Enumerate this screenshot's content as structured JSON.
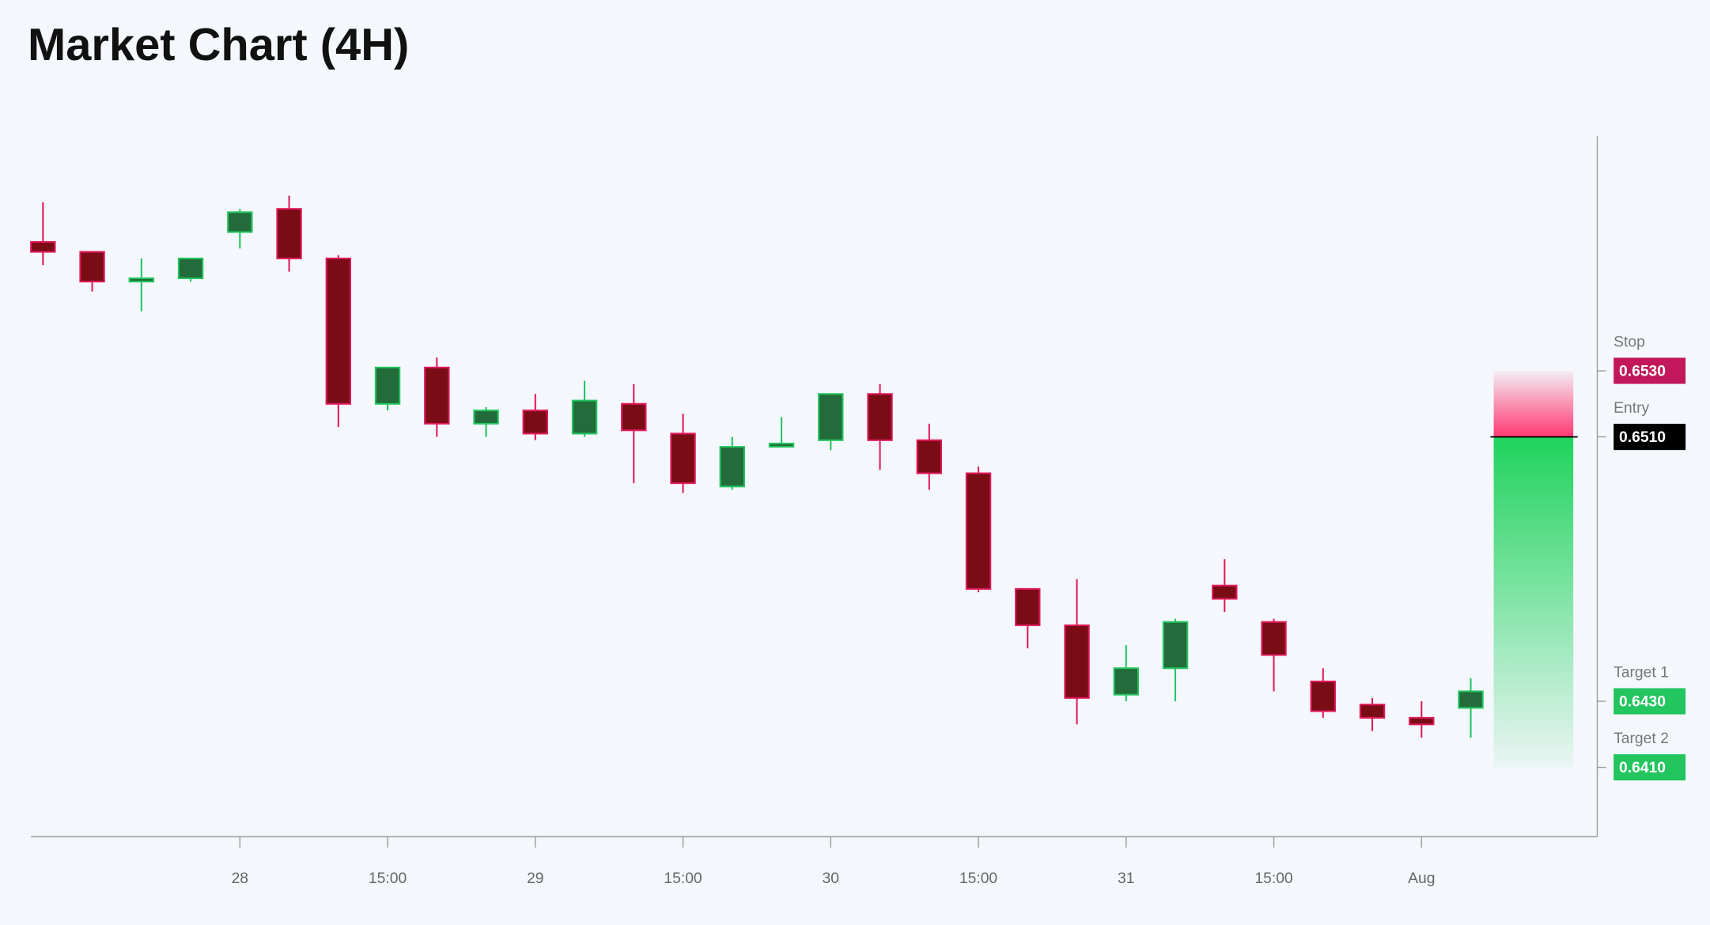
{
  "chart_data": {
    "type": "candlestick",
    "title": "Market Chart (4H)",
    "categories": [
      null,
      null,
      null,
      null,
      "28",
      null,
      null,
      "15:00",
      null,
      null,
      "29",
      null,
      null,
      "15:00",
      null,
      null,
      "30",
      null,
      null,
      "15:00",
      null,
      null,
      "31",
      null,
      null,
      "15:00",
      null,
      null,
      "Aug",
      null
    ],
    "open": [
      0.6569,
      0.6566,
      0.6557,
      0.6558,
      0.6572,
      0.6579,
      0.6564,
      0.652,
      0.6531,
      0.6514,
      0.6518,
      0.6511,
      0.652,
      0.6511,
      0.6495,
      0.6507,
      0.6509,
      0.6523,
      0.6509,
      0.6499,
      0.6464,
      0.6453,
      0.6432,
      0.644,
      0.6465,
      0.6454,
      0.6436,
      0.6429,
      0.6425,
      0.6428
    ],
    "high": [
      0.6581,
      0.6566,
      0.6564,
      0.6564,
      0.6579,
      0.6583,
      0.6565,
      0.6531,
      0.6534,
      0.6519,
      0.6523,
      0.6527,
      0.6526,
      0.6517,
      0.651,
      0.6516,
      0.6523,
      0.6526,
      0.6514,
      0.6501,
      0.6464,
      0.6467,
      0.6447,
      0.6455,
      0.6473,
      0.6455,
      0.644,
      0.6431,
      0.643,
      0.6437
    ],
    "low": [
      0.6562,
      0.6554,
      0.6548,
      0.6557,
      0.6567,
      0.656,
      0.6513,
      0.6518,
      0.651,
      0.651,
      0.6509,
      0.651,
      0.6496,
      0.6493,
      0.6494,
      0.6507,
      0.6506,
      0.65,
      0.6494,
      0.6463,
      0.6446,
      0.6423,
      0.643,
      0.643,
      0.6457,
      0.6433,
      0.6425,
      0.6421,
      0.6419,
      0.6419
    ],
    "close": [
      0.6566,
      0.6557,
      0.6558,
      0.6564,
      0.6578,
      0.6564,
      0.652,
      0.6531,
      0.6514,
      0.6518,
      0.6511,
      0.6521,
      0.6512,
      0.6496,
      0.6507,
      0.6508,
      0.6523,
      0.6509,
      0.6499,
      0.6464,
      0.6453,
      0.6431,
      0.644,
      0.6454,
      0.6461,
      0.6444,
      0.6427,
      0.6425,
      0.6423,
      0.6433
    ],
    "up_color": "#22c55e",
    "down_color": "#e0195a",
    "ylim": [
      0.6389,
      0.6601
    ],
    "levels": [
      {
        "name": "Stop",
        "value": 0.653,
        "value_label": "0.6530",
        "color": "#c2185b"
      },
      {
        "name": "Entry",
        "value": 0.651,
        "value_label": "0.6510",
        "color": "#000000"
      },
      {
        "name": "Target 1",
        "value": 0.643,
        "value_label": "0.6430",
        "color": "#22c55e"
      },
      {
        "name": "Target 2",
        "value": 0.641,
        "value_label": "0.6410",
        "color": "#22c55e"
      }
    ]
  }
}
